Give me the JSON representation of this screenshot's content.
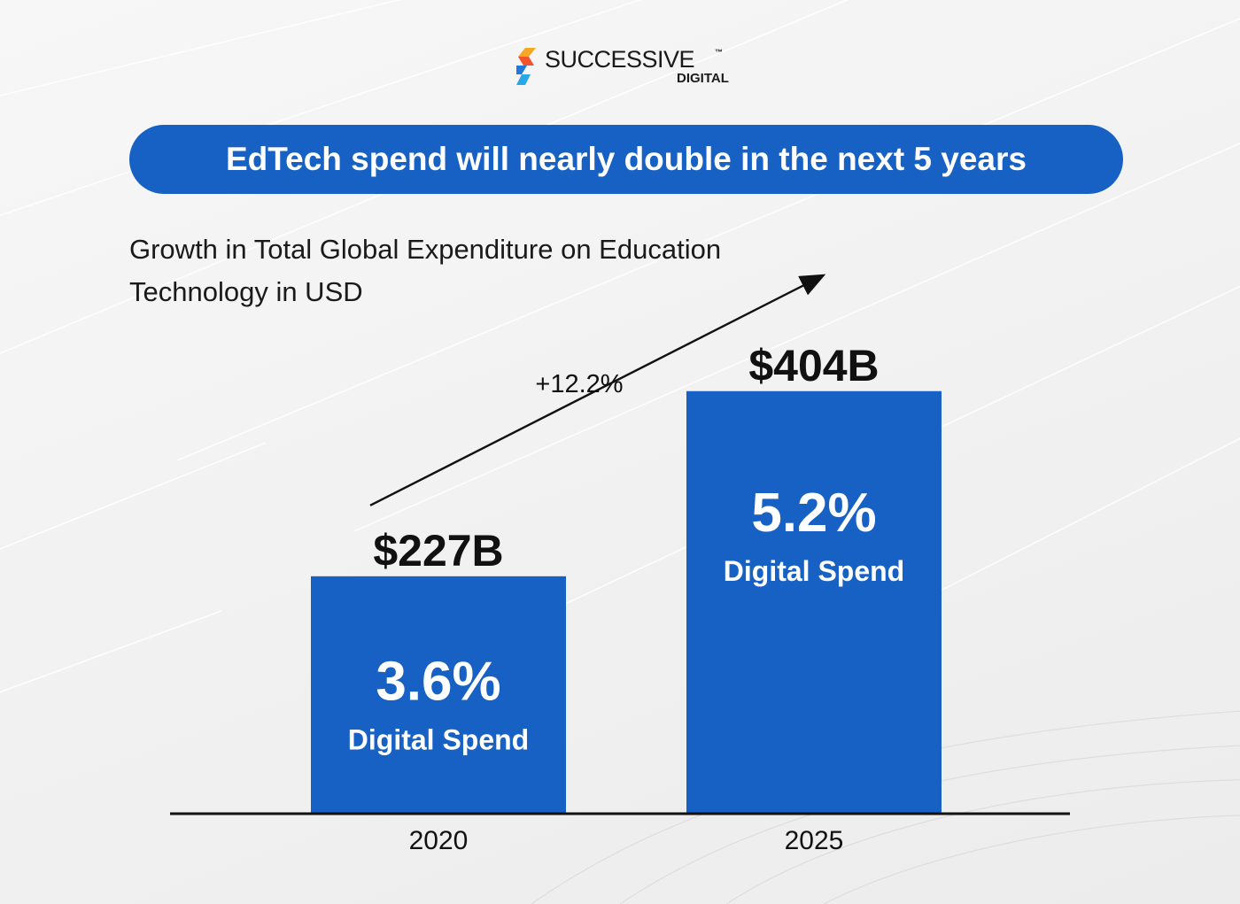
{
  "brand": {
    "name": "SUCCESSIVE",
    "trademark": "™",
    "sub": "DIGITAL",
    "colors": [
      "#f7a823",
      "#f2542d",
      "#1f7ae0",
      "#2aa7e8"
    ]
  },
  "banner": {
    "text": "EdTech spend will nearly double in the next 5 years",
    "color": "#1761c4"
  },
  "subtitle": "Growth in Total Global Expenditure on Education Technology in USD",
  "chart_data": {
    "type": "bar",
    "categories": [
      "2020",
      "2025"
    ],
    "values": [
      227,
      404
    ],
    "unit": "B USD",
    "value_labels": [
      "$227B",
      "$404B"
    ],
    "bar_share_values": [
      "3.6%",
      "5.2%"
    ],
    "bar_share_label": "Digital Spend",
    "growth_label": "+12.2%",
    "bar_color": "#1761c4",
    "ylim": [
      0,
      480
    ],
    "grid": false,
    "legend": "none"
  }
}
